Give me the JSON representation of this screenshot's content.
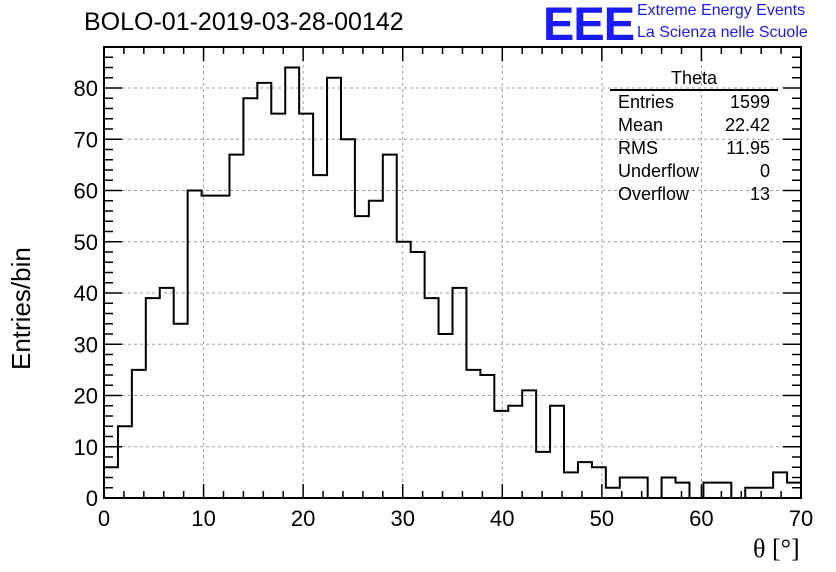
{
  "header": {
    "title": "BOLO-01-2019-03-28-00142",
    "logo_text": "EEE",
    "logo_line1": "Extreme Energy Events",
    "logo_line2": "La Scienza nelle Scuole",
    "logo_color": "#1a1aff"
  },
  "stats": {
    "title": "Theta",
    "rows": [
      {
        "label": "Entries",
        "value": "1599"
      },
      {
        "label": "Mean",
        "value": "22.42"
      },
      {
        "label": "RMS",
        "value": "11.95"
      },
      {
        "label": "Underflow",
        "value": "0"
      },
      {
        "label": "Overflow",
        "value": "13"
      }
    ]
  },
  "chart_data": {
    "type": "bar",
    "histogram": true,
    "title": "BOLO-01-2019-03-28-00142",
    "xlabel": "θ [°]",
    "ylabel": "Entries/bin",
    "xlim": [
      0,
      70
    ],
    "ylim": [
      0,
      88
    ],
    "bin_width": 1.4,
    "grid": true,
    "x_ticks": [
      0,
      10,
      20,
      30,
      40,
      50,
      60,
      70
    ],
    "y_ticks": [
      0,
      10,
      20,
      30,
      40,
      50,
      60,
      70,
      80
    ],
    "values": [
      6,
      14,
      25,
      39,
      41,
      34,
      60,
      59,
      59,
      67,
      78,
      81,
      75,
      84,
      75,
      63,
      82,
      70,
      55,
      58,
      67,
      50,
      48,
      39,
      32,
      41,
      25,
      24,
      17,
      18,
      21,
      9,
      18,
      5,
      7,
      6,
      2,
      4,
      4,
      0,
      4,
      3,
      0,
      3,
      3,
      0,
      2,
      2,
      5,
      3
    ],
    "line_color": "#000000"
  }
}
